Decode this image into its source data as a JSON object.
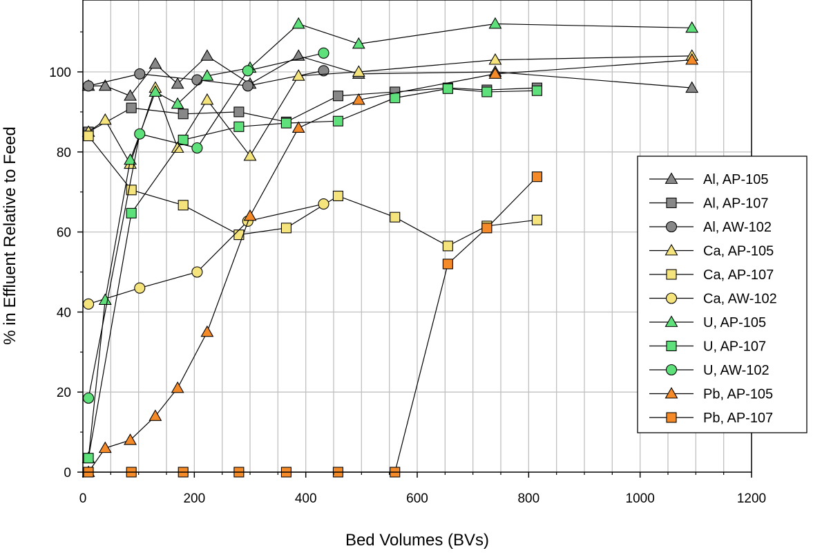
{
  "chart_data": {
    "type": "line",
    "xlabel": "Bed Volumes (BVs)",
    "ylabel": "% in Effluent Relative to Feed",
    "xlim": [
      0,
      1200
    ],
    "ylim": [
      0,
      120
    ],
    "xticks": [
      0,
      200,
      400,
      600,
      800,
      1000,
      1200
    ],
    "yticks": [
      0,
      20,
      40,
      60,
      80,
      100
    ],
    "grid": "vertical-and-horizontal",
    "legend_position": "right",
    "colors": {
      "gray": "#888888",
      "yellow": "#f5e37c",
      "green": "#5ee07a",
      "orange": "#f58a28",
      "edge": "#000000",
      "grid": "#c0c0c0"
    },
    "series": [
      {
        "name": "Al, AP-105",
        "marker": "triangle",
        "color": "gray",
        "x": [
          10,
          40,
          85,
          130,
          170,
          223,
          300,
          387,
          495,
          740,
          1093
        ],
        "y": [
          96.5,
          96.5,
          94,
          102,
          97,
          104,
          97,
          104,
          99.5,
          100,
          96
        ]
      },
      {
        "name": "Al, AP-107",
        "marker": "square",
        "color": "gray",
        "x": [
          10,
          87,
          180,
          280,
          365,
          458,
          560,
          655,
          725,
          815
        ],
        "y": [
          85,
          91,
          89.5,
          90,
          87.5,
          94,
          95,
          96,
          95.5,
          96
        ]
      },
      {
        "name": "Al, AW-102",
        "marker": "circle",
        "color": "gray",
        "x": [
          10,
          102,
          205,
          296,
          432
        ],
        "y": [
          96.5,
          99.5,
          98,
          96.5,
          100.3
        ]
      },
      {
        "name": "Ca, AP-105",
        "marker": "triangle",
        "color": "yellow",
        "x": [
          10,
          40,
          85,
          130,
          170,
          223,
          300,
          387,
          495,
          740,
          1093
        ],
        "y": [
          85,
          88,
          77,
          96,
          81,
          93,
          79,
          99,
          100,
          103,
          104
        ]
      },
      {
        "name": "Ca, AP-107",
        "marker": "square",
        "color": "yellow",
        "x": [
          10,
          87,
          180,
          280,
          365,
          458,
          560,
          655,
          725,
          815
        ],
        "y": [
          84,
          70.5,
          66.7,
          59.3,
          61,
          69,
          63.7,
          56.5,
          61.5,
          63
        ]
      },
      {
        "name": "Ca, AW-102",
        "marker": "circle",
        "color": "yellow",
        "x": [
          10,
          102,
          205,
          296,
          432
        ],
        "y": [
          42,
          46,
          50,
          62.7,
          67
        ]
      },
      {
        "name": "U, AP-105",
        "marker": "triangle",
        "color": "green",
        "x": [
          10,
          40,
          85,
          130,
          170,
          223,
          300,
          387,
          495,
          740,
          1093
        ],
        "y": [
          3.5,
          43,
          78,
          95,
          92,
          99,
          101,
          112,
          107,
          112,
          111
        ]
      },
      {
        "name": "U, AP-107",
        "marker": "square",
        "color": "green",
        "x": [
          10,
          87,
          180,
          280,
          365,
          458,
          560,
          655,
          725,
          815
        ],
        "y": [
          3.5,
          64.7,
          83,
          86.3,
          87.2,
          87.7,
          93.5,
          95.8,
          95,
          95.3
        ]
      },
      {
        "name": "U, AW-102",
        "marker": "circle",
        "color": "green",
        "x": [
          10,
          102,
          205,
          296,
          432
        ],
        "y": [
          18.5,
          84.5,
          81,
          100.3,
          104.7
        ]
      },
      {
        "name": "Pb, AP-105",
        "marker": "triangle",
        "color": "orange",
        "x": [
          10,
          40,
          85,
          130,
          170,
          223,
          300,
          387,
          495,
          740,
          1093
        ],
        "y": [
          0,
          6,
          8,
          14,
          21,
          35,
          64,
          86,
          93,
          99.5,
          103
        ]
      },
      {
        "name": "Pb, AP-107",
        "marker": "square",
        "color": "orange",
        "x": [
          10,
          87,
          180,
          280,
          365,
          458,
          560,
          655,
          725,
          815
        ],
        "y": [
          0,
          0,
          0,
          0,
          0,
          0,
          0,
          52,
          61,
          73.8
        ]
      }
    ]
  }
}
